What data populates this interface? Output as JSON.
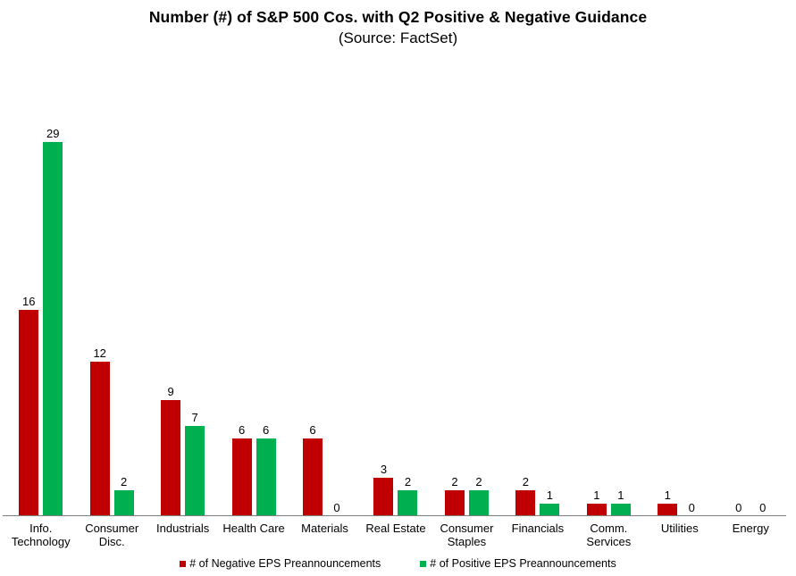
{
  "title": "Number (#) of S&P 500 Cos. with Q2 Positive & Negative Guidance",
  "subtitle": "(Source: FactSet)",
  "colors": {
    "negative": "#C00000",
    "positive": "#00B050",
    "axis_line": "#7F7F7F"
  },
  "chart_data": {
    "type": "bar",
    "title": "Number (#) of S&P 500 Cos. with Q2 Positive & Negative Guidance",
    "subtitle": "(Source: FactSet)",
    "categories": [
      "Info.\nTechnology",
      "Consumer\nDisc.",
      "Industrials",
      "Health Care",
      "Materials",
      "Real Estate",
      "Consumer\nStaples",
      "Financials",
      "Comm.\nServices",
      "Utilities",
      "Energy"
    ],
    "series": [
      {
        "name": "# of Negative EPS Preannouncements",
        "color": "#C00000",
        "values": [
          16,
          12,
          9,
          6,
          6,
          3,
          2,
          2,
          1,
          1,
          0
        ]
      },
      {
        "name": "# of Positive EPS Preannouncements",
        "color": "#00B050",
        "values": [
          29,
          2,
          7,
          6,
          0,
          2,
          2,
          1,
          1,
          0,
          0
        ]
      }
    ],
    "xlabel": "",
    "ylabel": "",
    "ylim": [
      0,
      30
    ],
    "grid": false,
    "data_labels": true,
    "legend_position": "bottom"
  }
}
